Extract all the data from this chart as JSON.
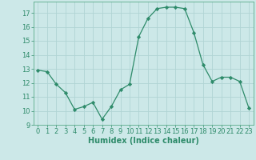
{
  "x": [
    0,
    1,
    2,
    3,
    4,
    5,
    6,
    7,
    8,
    9,
    10,
    11,
    12,
    13,
    14,
    15,
    16,
    17,
    18,
    19,
    20,
    21,
    22,
    23
  ],
  "y": [
    12.9,
    12.8,
    11.9,
    11.3,
    10.1,
    10.3,
    10.6,
    9.4,
    10.3,
    11.5,
    11.9,
    15.3,
    16.6,
    17.3,
    17.4,
    17.4,
    17.3,
    15.6,
    13.3,
    12.1,
    12.4,
    12.4,
    12.1,
    10.2
  ],
  "line_color": "#2e8b6a",
  "marker": "D",
  "marker_size": 2.2,
  "bg_color": "#cce8e8",
  "grid_color": "#b0d4d4",
  "xlabel": "Humidex (Indice chaleur)",
  "ylim": [
    9,
    17.8
  ],
  "yticks": [
    9,
    10,
    11,
    12,
    13,
    14,
    15,
    16,
    17
  ],
  "xlim": [
    -0.5,
    23.5
  ],
  "xticks": [
    0,
    1,
    2,
    3,
    4,
    5,
    6,
    7,
    8,
    9,
    10,
    11,
    12,
    13,
    14,
    15,
    16,
    17,
    18,
    19,
    20,
    21,
    22,
    23
  ],
  "tick_color": "#2e8b6a",
  "label_color": "#2e8b6a",
  "tick_fontsize": 6.0,
  "xlabel_fontsize": 7.0,
  "spine_color": "#5aaa8a"
}
